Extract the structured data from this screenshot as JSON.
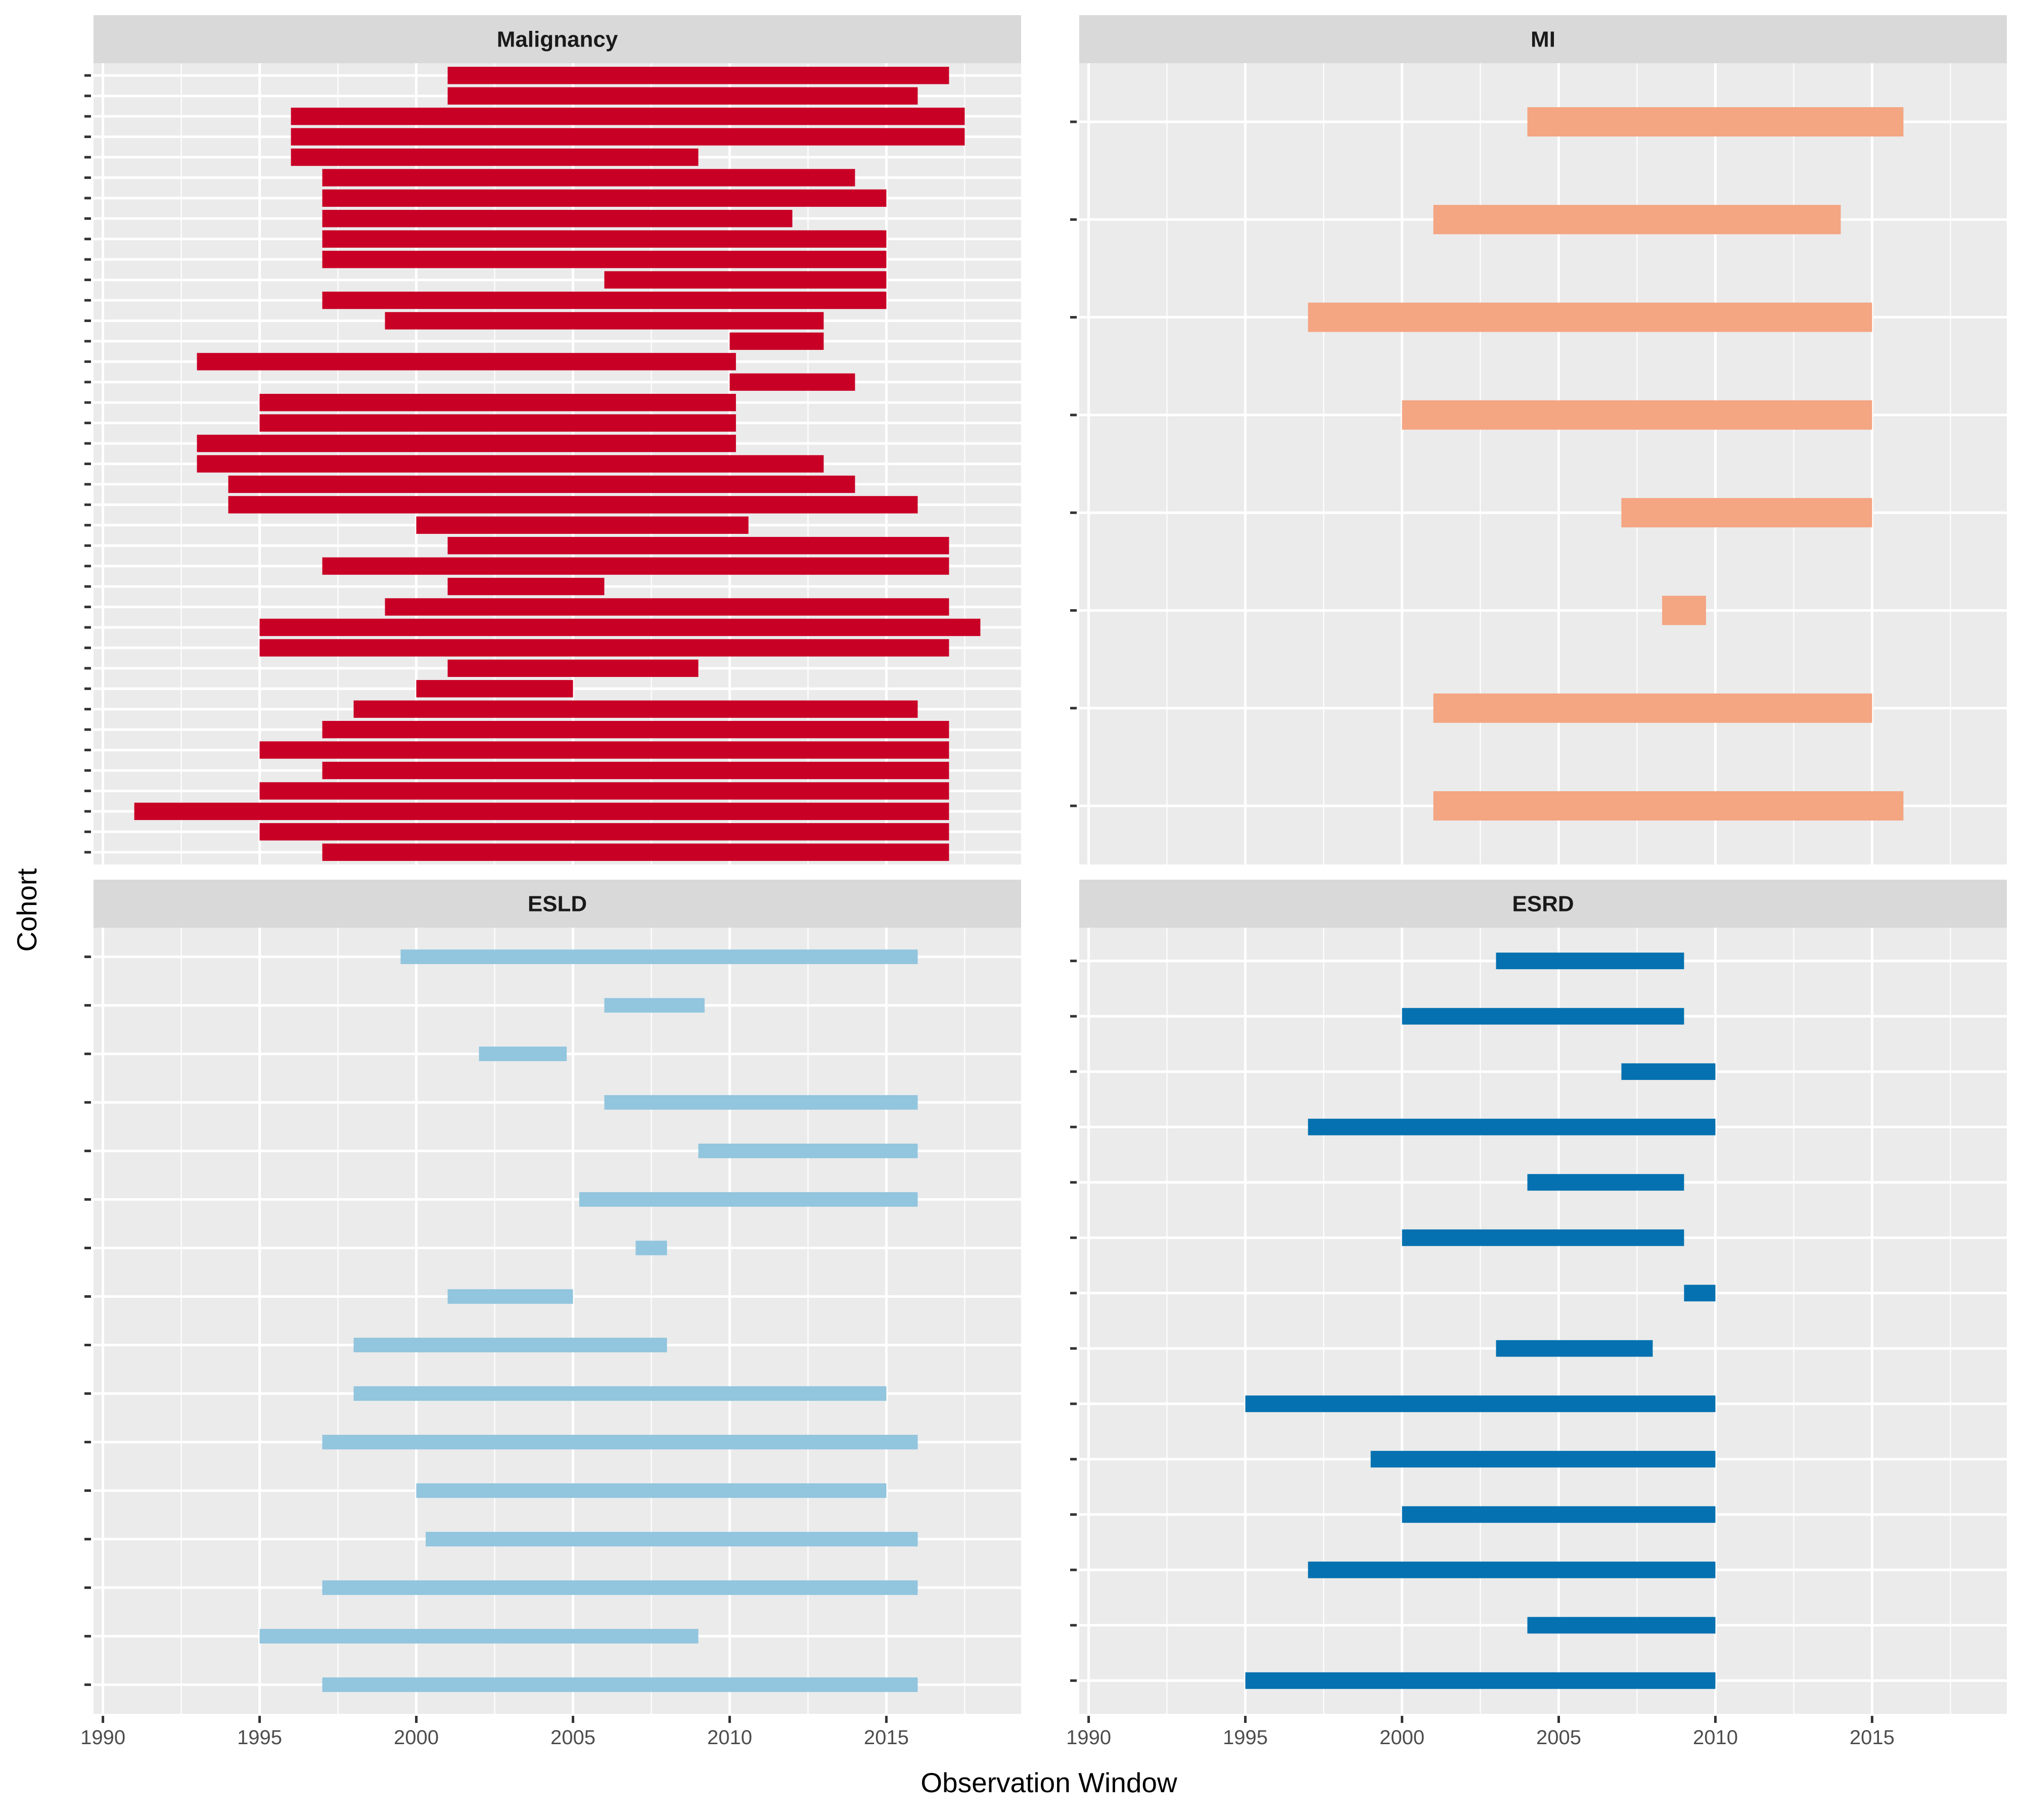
{
  "chart_data": {
    "type": "bar",
    "orientation": "horizontal-range",
    "xlabel": "Observation Window",
    "ylabel": "Cohort",
    "xlim": [
      1989.7,
      2019.3
    ],
    "x_ticks": [
      1990,
      1995,
      2000,
      2005,
      2010,
      2015
    ],
    "x_tick_labels": [
      "1990",
      "1995",
      "2000",
      "2005",
      "2010",
      "2015"
    ],
    "grid": true,
    "facets": [
      {
        "name": "Malignancy",
        "color": "#c90026",
        "ranges": [
          [
            2001,
            2017
          ],
          [
            2001,
            2016
          ],
          [
            1996,
            2017.5
          ],
          [
            1996,
            2017.5
          ],
          [
            1996,
            2009
          ],
          [
            1997,
            2014
          ],
          [
            1997,
            2015
          ],
          [
            1997,
            2012
          ],
          [
            1997,
            2015
          ],
          [
            1997,
            2015
          ],
          [
            2006,
            2015
          ],
          [
            1997,
            2015
          ],
          [
            1999,
            2013
          ],
          [
            2010,
            2013
          ],
          [
            1993,
            2010.2
          ],
          [
            2010,
            2014
          ],
          [
            1995,
            2010.2
          ],
          [
            1995,
            2010.2
          ],
          [
            1993,
            2010.2
          ],
          [
            1993,
            2013
          ],
          [
            1994,
            2014
          ],
          [
            1994,
            2016
          ],
          [
            2000,
            2010.6
          ],
          [
            2001,
            2017
          ],
          [
            1997,
            2017
          ],
          [
            2001,
            2006
          ],
          [
            1999,
            2017
          ],
          [
            1995,
            2018
          ],
          [
            1995,
            2017
          ],
          [
            2001,
            2009
          ],
          [
            2000,
            2005
          ],
          [
            1998,
            2016
          ],
          [
            1997,
            2017
          ],
          [
            1995,
            2017
          ],
          [
            1997,
            2017
          ],
          [
            1995,
            2017
          ],
          [
            1991,
            2017
          ],
          [
            1995,
            2017
          ],
          [
            1997,
            2017
          ]
        ]
      },
      {
        "name": "MI",
        "color": "#f4a582",
        "ranges": [
          [
            2004,
            2016
          ],
          [
            2001,
            2014
          ],
          [
            1997,
            2015
          ],
          [
            2000,
            2015
          ],
          [
            2007,
            2015
          ],
          [
            2008.3,
            2009.7
          ],
          [
            2001,
            2015
          ],
          [
            2001,
            2016
          ]
        ]
      },
      {
        "name": "ESLD",
        "color": "#92c5de",
        "ranges": [
          [
            1999.5,
            2016
          ],
          [
            2006,
            2009.2
          ],
          [
            2002,
            2004.8
          ],
          [
            2006,
            2016
          ],
          [
            2009,
            2016
          ],
          [
            2005.2,
            2016
          ],
          [
            2007,
            2008
          ],
          [
            2001,
            2005
          ],
          [
            1998,
            2008
          ],
          [
            1998,
            2015
          ],
          [
            1997,
            2016
          ],
          [
            2000,
            2015
          ],
          [
            2000.3,
            2016
          ],
          [
            1997,
            2016
          ],
          [
            1995,
            2009
          ],
          [
            1997,
            2016
          ]
        ]
      },
      {
        "name": "ESRD",
        "color": "#0571b0",
        "ranges": [
          [
            2003,
            2009
          ],
          [
            2000,
            2009
          ],
          [
            2007,
            2010
          ],
          [
            1997,
            2010
          ],
          [
            2004,
            2009
          ],
          [
            2000,
            2009
          ],
          [
            2009,
            2010
          ],
          [
            2003,
            2008
          ],
          [
            1995,
            2010
          ],
          [
            1999,
            2010
          ],
          [
            2000,
            2010
          ],
          [
            1997,
            2010
          ],
          [
            2004,
            2010
          ],
          [
            1995,
            2010
          ]
        ]
      }
    ]
  }
}
